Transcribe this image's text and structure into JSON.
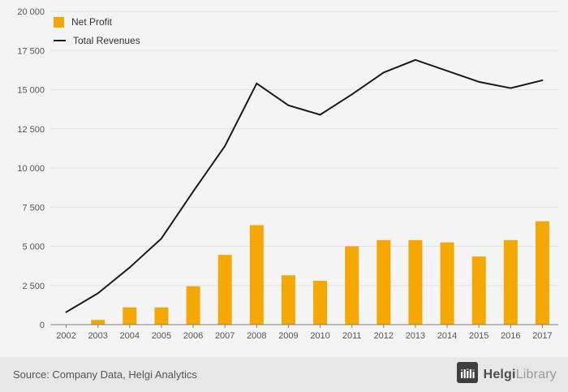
{
  "chart_data": {
    "type": "bar",
    "categories": [
      "2002",
      "2003",
      "2004",
      "2005",
      "2006",
      "2007",
      "2008",
      "2009",
      "2010",
      "2011",
      "2012",
      "2013",
      "2014",
      "2015",
      "2016",
      "2017"
    ],
    "series": [
      {
        "name": "Net Profit",
        "type": "bar",
        "color": "#F5A800",
        "values": [
          0,
          300,
          1100,
          1100,
          2450,
          4450,
          6350,
          3150,
          2800,
          5000,
          5400,
          5400,
          5250,
          4350,
          5400,
          6600
        ]
      },
      {
        "name": "Total Revenues",
        "type": "line",
        "color": "#1a1a1a",
        "values": [
          800,
          2000,
          3650,
          5500,
          8500,
          11400,
          15400,
          14000,
          13400,
          14700,
          16100,
          16900,
          16200,
          15500,
          15100,
          15600
        ]
      }
    ],
    "title": "",
    "xlabel": "",
    "ylabel": "",
    "ylim": [
      0,
      20000
    ],
    "ytick_interval": 2500,
    "ytick_labels": [
      "0",
      "2 500",
      "5 000",
      "7 500",
      "10 000",
      "12 500",
      "15 000",
      "17 500",
      "20 000"
    ],
    "grid": true,
    "legend_position": "top-left"
  },
  "footer": {
    "source": "Source: Company Data, Helgi Analytics",
    "brand_bold": "Helgi",
    "brand_light": "Library"
  },
  "colors": {
    "chart_background": "#f4f4f4",
    "footer_background": "#e7e7e7",
    "gridline": "#e1e1e1",
    "axis": "#808080",
    "tick_text": "#555555",
    "bar": "#F5A800",
    "line": "#1a1a1a"
  }
}
